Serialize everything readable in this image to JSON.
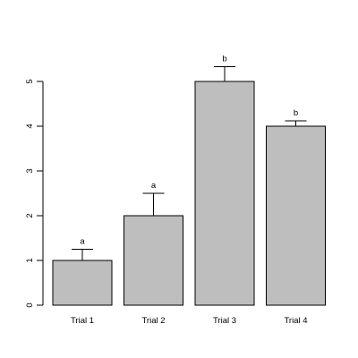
{
  "chart_data": {
    "type": "bar",
    "categories": [
      "Trial 1",
      "Trial 2",
      "Trial 3",
      "Trial 4"
    ],
    "values": [
      1,
      2,
      5,
      4
    ],
    "error_upper": [
      1.25,
      2.5,
      5.33,
      4.12
    ],
    "significance_letters": [
      "a",
      "a",
      "b",
      "b"
    ],
    "y_ticks": [
      "0",
      "1",
      "2",
      "3",
      "4",
      "5"
    ],
    "ylim": [
      0,
      5.5
    ],
    "bar_color": "#bebebe",
    "grid": false,
    "legend": "none"
  }
}
